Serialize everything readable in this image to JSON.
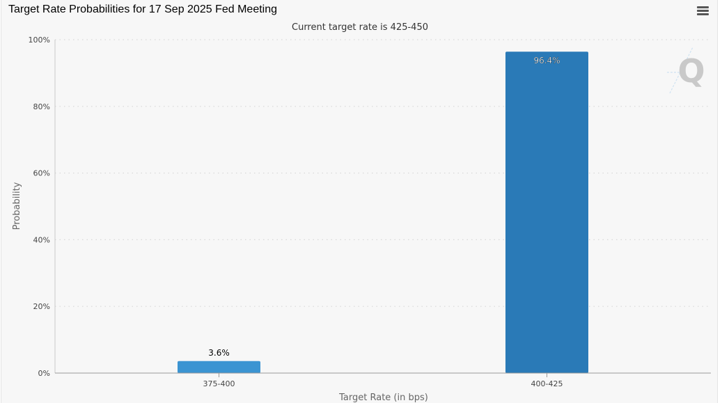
{
  "header": {
    "title": "Target Rate Probabilities for 17 Sep 2025 Fed Meeting",
    "menu_icon": "hamburger-menu-icon"
  },
  "colors": {
    "bar_low": "#3b94d2",
    "bar_high": "#2a7ab7",
    "grid": "#d8d8d8",
    "axis_text": "#555555",
    "watermark": "#c9c9c9"
  },
  "watermark": {
    "icon": "quikstrike-q-logo-icon",
    "letter": "Q"
  },
  "chart_data": {
    "type": "bar",
    "title": "Target Rate Probabilities for 17 Sep 2025 Fed Meeting",
    "subtitle": "Current target rate is 425-450",
    "xlabel": "Target Rate (in bps)",
    "ylabel": "Probability",
    "categories": [
      "375-400",
      "400-425"
    ],
    "values": [
      3.6,
      96.4
    ],
    "data_labels": [
      "3.6%",
      "96.4%"
    ],
    "ylim": [
      0,
      100
    ],
    "yticks": [
      0,
      20,
      40,
      60,
      80,
      100
    ],
    "ytick_labels": [
      "0%",
      "20%",
      "40%",
      "60%",
      "80%",
      "100%"
    ],
    "grid": true,
    "legend": "none"
  }
}
